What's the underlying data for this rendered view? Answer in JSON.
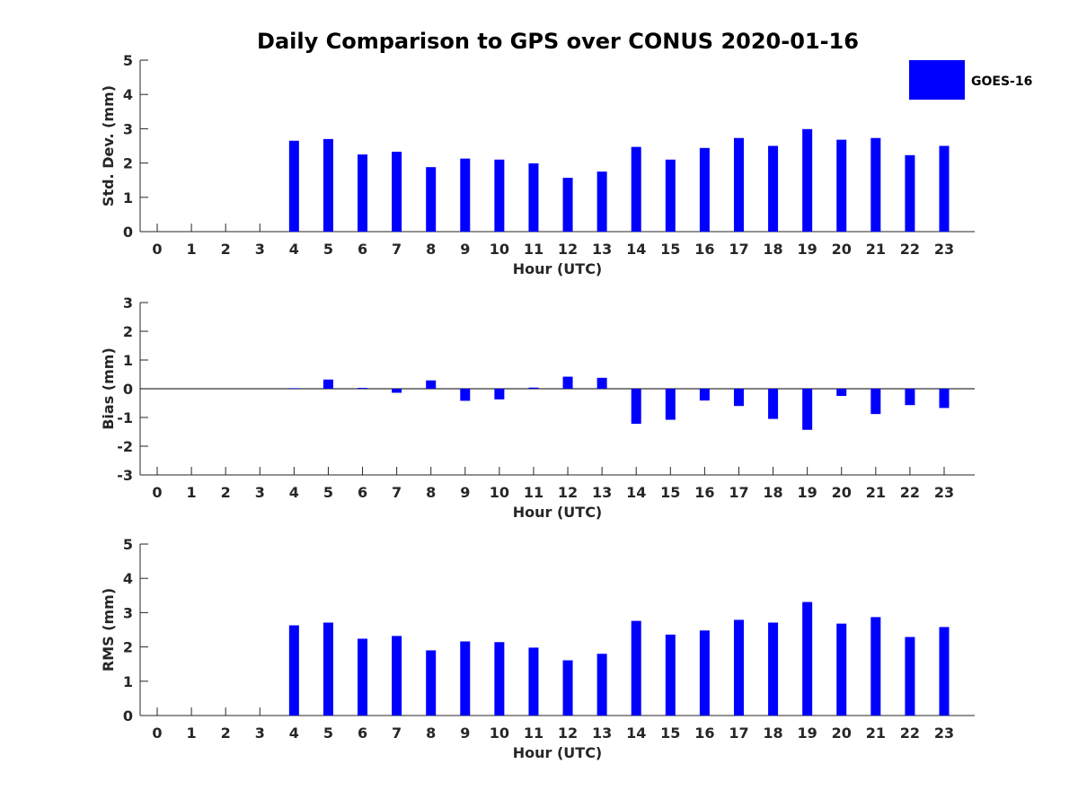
{
  "chart_data": [
    {
      "type": "bar",
      "title": "Daily Comparison to GPS over CONUS 2020-01-16",
      "xlabel": "Hour (UTC)",
      "ylabel": "Std. Dev. (mm)",
      "categories": [
        "0",
        "1",
        "2",
        "3",
        "4",
        "5",
        "6",
        "7",
        "8",
        "9",
        "10",
        "11",
        "12",
        "13",
        "14",
        "15",
        "16",
        "17",
        "18",
        "19",
        "20",
        "21",
        "22",
        "23"
      ],
      "ylim": [
        0,
        5
      ],
      "yticks": [
        "0",
        "1",
        "2",
        "3",
        "4",
        "5"
      ],
      "series": [
        {
          "name": "GOES-16",
          "color": "#0000ff",
          "values": [
            0,
            0,
            0,
            0,
            2.65,
            2.7,
            2.25,
            2.33,
            1.88,
            2.13,
            2.1,
            1.99,
            1.57,
            1.75,
            2.47,
            2.1,
            2.44,
            2.73,
            2.5,
            2.99,
            2.68,
            2.73,
            2.23,
            2.5
          ]
        }
      ],
      "legend": {
        "position": "top-right",
        "entries": [
          "GOES-16"
        ]
      }
    },
    {
      "type": "bar",
      "xlabel": "Hour (UTC)",
      "ylabel": "Bias (mm)",
      "categories": [
        "0",
        "1",
        "2",
        "3",
        "4",
        "5",
        "6",
        "7",
        "8",
        "9",
        "10",
        "11",
        "12",
        "13",
        "14",
        "15",
        "16",
        "17",
        "18",
        "19",
        "20",
        "21",
        "22",
        "23"
      ],
      "ylim": [
        -3,
        3
      ],
      "yticks": [
        "-3",
        "-2",
        "-1",
        "0",
        "1",
        "2",
        "3"
      ],
      "series": [
        {
          "name": "GOES-16",
          "color": "#0000ff",
          "values": [
            0,
            0,
            0,
            0,
            0.02,
            0.32,
            0.03,
            -0.14,
            0.29,
            -0.42,
            -0.37,
            0.04,
            0.42,
            0.38,
            -1.22,
            -1.08,
            -0.41,
            -0.6,
            -1.05,
            -1.43,
            -0.25,
            -0.88,
            -0.57,
            -0.67
          ]
        }
      ]
    },
    {
      "type": "bar",
      "xlabel": "Hour (UTC)",
      "ylabel": "RMS (mm)",
      "categories": [
        "0",
        "1",
        "2",
        "3",
        "4",
        "5",
        "6",
        "7",
        "8",
        "9",
        "10",
        "11",
        "12",
        "13",
        "14",
        "15",
        "16",
        "17",
        "18",
        "19",
        "20",
        "21",
        "22",
        "23"
      ],
      "ylim": [
        0,
        5
      ],
      "yticks": [
        "0",
        "1",
        "2",
        "3",
        "4",
        "5"
      ],
      "series": [
        {
          "name": "GOES-16",
          "color": "#0000ff",
          "values": [
            0,
            0,
            0,
            0,
            2.63,
            2.71,
            2.24,
            2.32,
            1.9,
            2.16,
            2.14,
            1.98,
            1.61,
            1.8,
            2.76,
            2.36,
            2.48,
            2.79,
            2.71,
            3.31,
            2.68,
            2.87,
            2.29,
            2.58
          ]
        }
      ]
    }
  ]
}
